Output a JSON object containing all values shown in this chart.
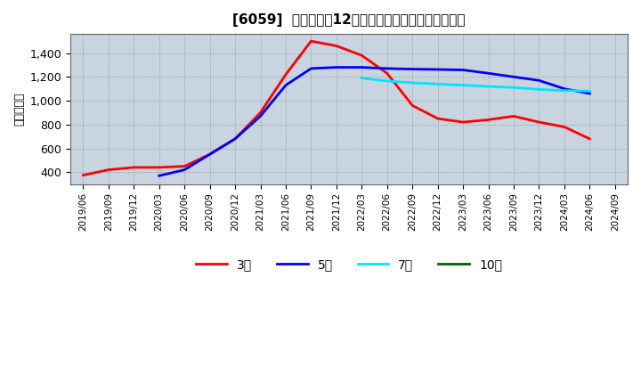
{
  "title": "[6059]  当期純利益12か月移動合計の標準偏差の推移",
  "ylabel": "（百万円）",
  "background_color": "#ffffff",
  "plot_background_color": "#c8d4e0",
  "grid_color": "#aaaaaa",
  "ylim": [
    300,
    1560
  ],
  "yticks": [
    400,
    600,
    800,
    1000,
    1200,
    1400
  ],
  "ytick_labels": [
    "400",
    "600",
    "800",
    "1,000",
    "1,200",
    "1,400"
  ],
  "series": {
    "3年": {
      "color": "#ff0000",
      "x": [
        "2019/06",
        "2019/09",
        "2019/12",
        "2020/03",
        "2020/06",
        "2020/09",
        "2020/12",
        "2021/03",
        "2021/06",
        "2021/09",
        "2021/12",
        "2022/03",
        "2022/06",
        "2022/09",
        "2022/12",
        "2023/03",
        "2023/06",
        "2023/09",
        "2023/12",
        "2024/03",
        "2024/06"
      ],
      "y": [
        375,
        420,
        440,
        440,
        450,
        550,
        680,
        900,
        1220,
        1500,
        1460,
        1380,
        1230,
        960,
        850,
        820,
        840,
        870,
        820,
        780,
        680
      ]
    },
    "5年": {
      "color": "#0000ff",
      "x": [
        "2020/03",
        "2020/06",
        "2020/09",
        "2020/12",
        "2021/03",
        "2021/06",
        "2021/09",
        "2021/12",
        "2022/03",
        "2022/06",
        "2022/09",
        "2022/12",
        "2023/03",
        "2023/06",
        "2023/09",
        "2023/12",
        "2024/03",
        "2024/06"
      ],
      "y": [
        370,
        420,
        550,
        680,
        870,
        1130,
        1270,
        1280,
        1280,
        1270,
        1265,
        1262,
        1258,
        1230,
        1200,
        1170,
        1100,
        1060
      ]
    },
    "7年": {
      "color": "#00e5ff",
      "x": [
        "2022/03",
        "2022/06",
        "2022/09",
        "2022/12",
        "2023/03",
        "2023/06",
        "2023/09",
        "2023/12",
        "2024/03",
        "2024/06"
      ],
      "y": [
        1190,
        1165,
        1150,
        1140,
        1130,
        1120,
        1110,
        1095,
        1085,
        1080
      ]
    },
    "10年": {
      "color": "#006400",
      "x": [],
      "y": []
    }
  },
  "legend_entries": [
    "3年",
    "5年",
    "7年",
    "10年"
  ],
  "legend_colors": [
    "#ff0000",
    "#0000ff",
    "#00e5ff",
    "#006400"
  ],
  "xtick_dates": [
    "2019/06",
    "2019/09",
    "2019/12",
    "2020/03",
    "2020/06",
    "2020/09",
    "2020/12",
    "2021/03",
    "2021/06",
    "2021/09",
    "2021/12",
    "2022/03",
    "2022/06",
    "2022/09",
    "2022/12",
    "2023/03",
    "2023/06",
    "2023/09",
    "2023/12",
    "2024/03",
    "2024/06",
    "2024/09"
  ]
}
